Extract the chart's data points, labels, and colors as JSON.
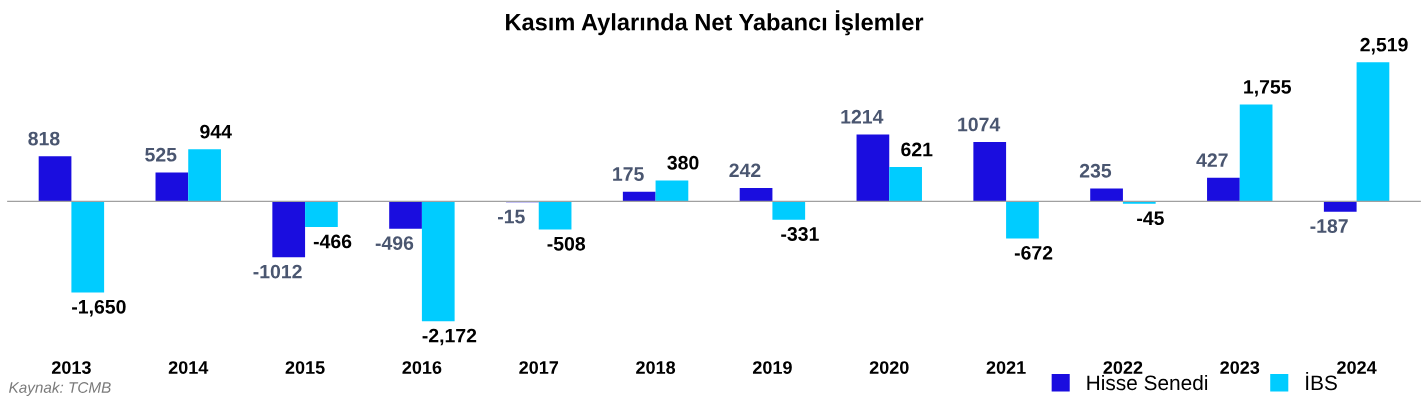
{
  "chart_data": {
    "type": "bar",
    "title": "Kasım Aylarında Net Yabancı İşlemler",
    "categories": [
      "2013",
      "2014",
      "2015",
      "2016",
      "2017",
      "2018",
      "2019",
      "2020",
      "2021",
      "2022",
      "2023",
      "2024"
    ],
    "series": [
      {
        "name": "Hisse Senedi",
        "color": "#1a0ddf",
        "values": [
          818,
          525,
          -1012,
          -496,
          -15,
          175,
          242,
          1214,
          1074,
          235,
          427,
          -187
        ],
        "value_labels": [
          "818",
          "525",
          "-1012",
          "-496",
          "-15",
          "175",
          "242",
          "1214",
          "1074",
          "235",
          "427",
          "-187"
        ]
      },
      {
        "name": "İBS",
        "color": "#00ccff",
        "values": [
          -1650,
          944,
          -466,
          -2172,
          -508,
          380,
          -331,
          621,
          -672,
          -45,
          1755,
          2519
        ],
        "value_labels": [
          "-1,650",
          "944",
          "-466",
          "-2,172",
          "-508",
          "380",
          "-331",
          "621",
          "-672",
          "-45",
          "1,755",
          "2,519"
        ]
      }
    ],
    "annotations": [
      "Kaynak: TCMB"
    ],
    "legend": "bottom right",
    "grid": false
  }
}
